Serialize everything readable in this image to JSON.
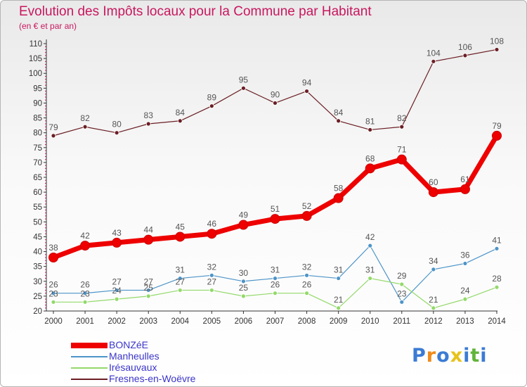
{
  "chart_data": {
    "type": "line",
    "title": "Evolution des Impôts locaux pour la Commune par Habitant",
    "subtitle": "(en € et par an)",
    "categories": [
      "2000",
      "2001",
      "2002",
      "2003",
      "2004",
      "2005",
      "2006",
      "2007",
      "2008",
      "2009",
      "2010",
      "2011",
      "2012",
      "2013",
      "2014"
    ],
    "ylim": [
      20,
      110
    ],
    "yticks": [
      20,
      25,
      30,
      35,
      40,
      45,
      50,
      55,
      60,
      65,
      70,
      75,
      80,
      85,
      90,
      95,
      100,
      105,
      110
    ],
    "grid": false,
    "legend_position": "bottom-left",
    "series": [
      {
        "name": "Fresnes-en-Woëvre",
        "color": "#6b1e24",
        "bold": false,
        "values": [
          79,
          82,
          80,
          83,
          84,
          89,
          95,
          90,
          94,
          84,
          81,
          82,
          104,
          106,
          108
        ]
      },
      {
        "name": "Manheulles",
        "color": "#4d94c8",
        "bold": false,
        "values": [
          26,
          26,
          27,
          27,
          31,
          32,
          30,
          31,
          32,
          31,
          42,
          23,
          34,
          36,
          41
        ]
      },
      {
        "name": "Irésauvaux",
        "color": "#93d96a",
        "bold": false,
        "values": [
          23,
          23,
          24,
          25,
          27,
          27,
          25,
          26,
          26,
          21,
          31,
          29,
          21,
          24,
          28
        ]
      },
      {
        "name": "BONZéE",
        "color": "#ee0000",
        "bold": true,
        "values": [
          38,
          42,
          43,
          44,
          45,
          46,
          49,
          51,
          52,
          58,
          68,
          71,
          60,
          61,
          79
        ]
      }
    ],
    "legend_order": [
      "BONZéE",
      "Manheulles",
      "Irésauvaux",
      "Fresnes-en-Woëvre"
    ]
  },
  "branding": {
    "logo_letters": [
      "P",
      "r",
      "o",
      "x",
      "i",
      "t",
      "i"
    ],
    "logo_colors": [
      "#3b7bd4",
      "#f08a1a",
      "#3b7bd4",
      "#e8c21a",
      "#3b7bd4",
      "#62b43a",
      "#3b7bd4"
    ]
  }
}
